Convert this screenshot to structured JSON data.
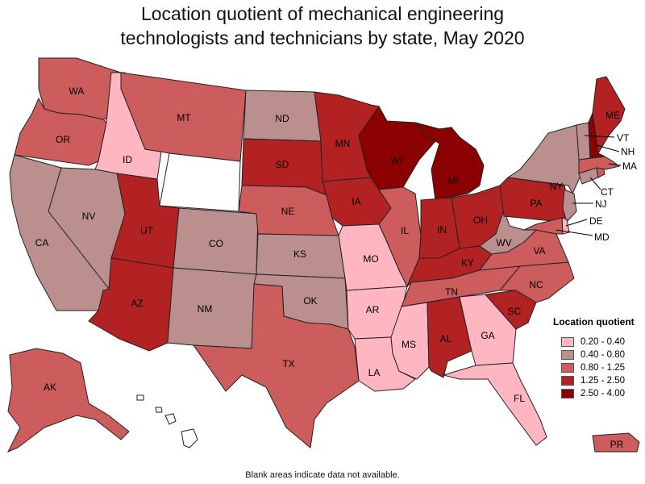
{
  "title_line1": "Location quotient of mechanical engineering",
  "title_line2": "technologists and technicians by state, May 2020",
  "footnote": "Blank areas indicate data not available.",
  "legend": {
    "title": "Location quotient",
    "items": [
      {
        "label": "0.20 - 0.40",
        "color": "#ffb6c1"
      },
      {
        "label": "0.40 - 0.80",
        "color": "#bc8f8f"
      },
      {
        "label": "0.80 - 1.25",
        "color": "#cd5c5c"
      },
      {
        "label": "1.25 - 2.50",
        "color": "#b22222"
      },
      {
        "label": "2.50 - 4.00",
        "color": "#8b0000"
      }
    ]
  },
  "no_data_color": "#ffffff",
  "states": {
    "WA": {
      "label": "WA",
      "cls": 2
    },
    "OR": {
      "label": "OR",
      "cls": 2
    },
    "CA": {
      "label": "CA",
      "cls": 1
    },
    "ID": {
      "label": "ID",
      "cls": 0
    },
    "NV": {
      "label": "NV",
      "cls": 1
    },
    "MT": {
      "label": "MT",
      "cls": 2
    },
    "WY": {
      "label": "",
      "cls": -1
    },
    "UT": {
      "label": "UT",
      "cls": 3
    },
    "AZ": {
      "label": "AZ",
      "cls": 3
    },
    "CO": {
      "label": "CO",
      "cls": 1
    },
    "NM": {
      "label": "NM",
      "cls": 1
    },
    "ND": {
      "label": "ND",
      "cls": 1
    },
    "SD": {
      "label": "SD",
      "cls": 3
    },
    "NE": {
      "label": "NE",
      "cls": 2
    },
    "KS": {
      "label": "KS",
      "cls": 1
    },
    "OK": {
      "label": "OK",
      "cls": 1
    },
    "TX": {
      "label": "TX",
      "cls": 2
    },
    "MN": {
      "label": "MN",
      "cls": 3
    },
    "IA": {
      "label": "IA",
      "cls": 3
    },
    "MO": {
      "label": "MO",
      "cls": 0
    },
    "AR": {
      "label": "AR",
      "cls": 0
    },
    "LA": {
      "label": "LA",
      "cls": 0
    },
    "WI": {
      "label": "WI",
      "cls": 4
    },
    "IL": {
      "label": "IL",
      "cls": 2
    },
    "MI": {
      "label": "MI",
      "cls": 4
    },
    "IN": {
      "label": "IN",
      "cls": 3
    },
    "OH": {
      "label": "OH",
      "cls": 3
    },
    "KY": {
      "label": "KY",
      "cls": 3
    },
    "TN": {
      "label": "TN",
      "cls": 2
    },
    "MS": {
      "label": "MS",
      "cls": 0
    },
    "AL": {
      "label": "AL",
      "cls": 3
    },
    "GA": {
      "label": "GA",
      "cls": 0
    },
    "FL": {
      "label": "FL",
      "cls": 0
    },
    "SC": {
      "label": "SC",
      "cls": 3
    },
    "NC": {
      "label": "NC",
      "cls": 2
    },
    "VA": {
      "label": "VA",
      "cls": 2
    },
    "WV": {
      "label": "WV",
      "cls": 1
    },
    "PA": {
      "label": "PA",
      "cls": 3
    },
    "NY": {
      "label": "NY",
      "cls": 1
    },
    "VT": {
      "label": "VT",
      "cls": 1
    },
    "NH": {
      "label": "NH",
      "cls": 4
    },
    "ME": {
      "label": "ME",
      "cls": 3
    },
    "MA": {
      "label": "MA",
      "cls": 2
    },
    "CT": {
      "label": "CT",
      "cls": 1
    },
    "RI": {
      "label": "",
      "cls": 2
    },
    "NJ": {
      "label": "NJ",
      "cls": 1
    },
    "DE": {
      "label": "DE",
      "cls": 0
    },
    "MD": {
      "label": "MD",
      "cls": 2
    },
    "AK": {
      "label": "AK",
      "cls": 2
    },
    "HI": {
      "label": "",
      "cls": -1
    },
    "PR": {
      "label": "PR",
      "cls": 2
    }
  }
}
